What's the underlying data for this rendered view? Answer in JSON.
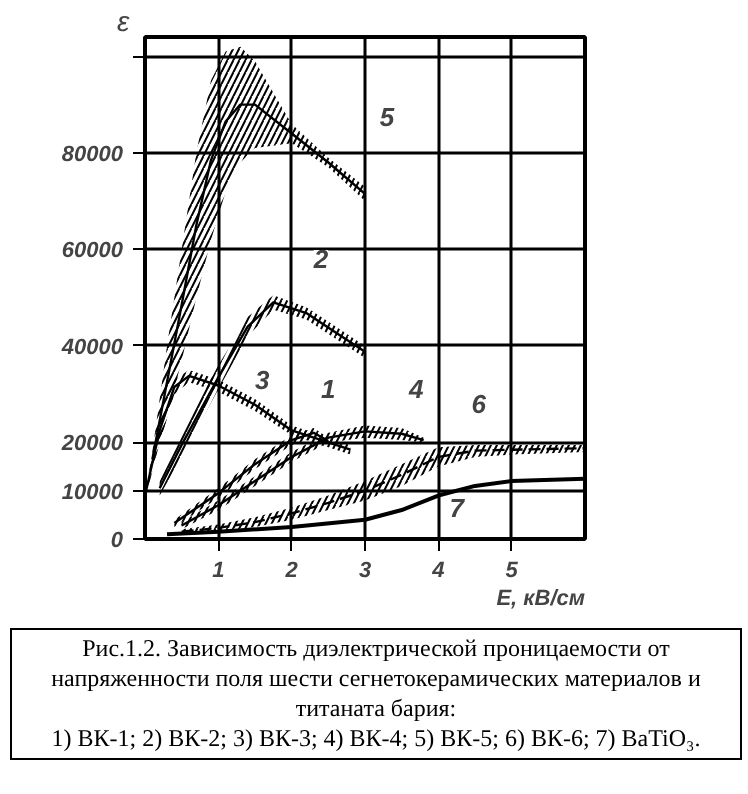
{
  "chart_data": {
    "type": "line",
    "ylabel": "ε",
    "xlabel": "E, кВ/см",
    "xlim": [
      0,
      6
    ],
    "xticks": [
      1,
      2,
      3,
      4,
      5
    ],
    "ylim": [
      0,
      104000
    ],
    "yticks": [
      0,
      10000,
      20000,
      {
        "value": 40000,
        "label": "40000"
      },
      60000,
      80000,
      {
        "value": 100000,
        "label": null
      }
    ],
    "grid": true,
    "series": [
      {
        "color": "#000000",
        "x": [
          0.1,
          0.3,
          0.5,
          0.7,
          0.9,
          1.1,
          1.3,
          1.5,
          2,
          2.5,
          3
        ],
        "values": [
          16500,
          32500,
          48500,
          65000,
          78500,
          86500,
          90000,
          90000,
          84000,
          78000,
          71500
        ],
        "lower": [
          15000,
          25000,
          37000,
          50000,
          62000,
          72000,
          78000,
          81000,
          82000,
          77000,
          70000
        ],
        "upper": [
          18000,
          40000,
          60000,
          80000,
          95000,
          101000,
          102000,
          99000,
          86000,
          79000,
          73000
        ]
      },
      {
        "color": "#000000",
        "x": [
          0.2,
          0.5,
          1,
          1.4,
          1.75,
          2.2,
          2.6,
          3
        ],
        "values": [
          10500,
          19500,
          33500,
          44000,
          49000,
          46800,
          42800,
          38800
        ],
        "lower": [
          9000,
          17000,
          31000,
          42000,
          47500,
          45500,
          41500,
          37500
        ],
        "upper": [
          12000,
          22000,
          36000,
          46000,
          50500,
          48000,
          44000,
          40000
        ]
      },
      {
        "color": "#000000",
        "x": [
          0,
          0.2,
          0.4,
          0.6,
          1,
          1.5,
          2,
          2.5,
          2.8
        ],
        "values": [
          9000,
          22500,
          31500,
          33800,
          31800,
          27800,
          22500,
          20000,
          18500
        ],
        "lower": [
          8000,
          20000,
          30000,
          32500,
          30500,
          26500,
          21500,
          19000,
          17500
        ],
        "upper": [
          10000,
          25000,
          33000,
          35000,
          33000,
          29000,
          23500,
          21000,
          19500
        ]
      },
      {
        "color": "#000000",
        "x": [
          0.4,
          1,
          1.5,
          2,
          2.3,
          2.5
        ],
        "values": [
          3300,
          9500,
          15500,
          20500,
          22000,
          20300
        ],
        "lower": [
          2500,
          8500,
          14500,
          19500,
          21000,
          19500
        ],
        "upper": [
          4000,
          10500,
          16500,
          21500,
          23000,
          21000
        ]
      },
      {
        "color": "#000000",
        "x": [
          0.5,
          1,
          1.5,
          2,
          2.5,
          3,
          3.5,
          3.8
        ],
        "values": [
          2800,
          7000,
          12000,
          17000,
          21000,
          22300,
          21800,
          20500
        ],
        "lower": [
          2000,
          6000,
          11000,
          16000,
          20000,
          21000,
          20500,
          20000
        ],
        "upper": [
          3500,
          8000,
          13000,
          18000,
          22000,
          23500,
          23000,
          21000
        ]
      },
      {
        "color": "#000000",
        "line_style": "dashed",
        "x": [
          0.5,
          1,
          1.5,
          2,
          2.5,
          3,
          3.5,
          4,
          4.5,
          5,
          6
        ],
        "values": [
          1500,
          2300,
          3500,
          5300,
          7500,
          10000,
          13300,
          17000,
          18300,
          18500,
          18800
        ],
        "lower": [
          1000,
          1500,
          2500,
          4000,
          6000,
          8000,
          11000,
          15000,
          17000,
          17500,
          18000
        ],
        "upper": [
          2000,
          3000,
          4500,
          6500,
          9000,
          12000,
          15500,
          19000,
          19500,
          19500,
          19500
        ]
      },
      {
        "color": "#000000",
        "x": [
          0.3,
          1,
          2,
          3,
          3.5,
          4,
          4.5,
          5,
          6
        ],
        "values": [
          1000,
          1500,
          2500,
          4000,
          6000,
          9000,
          11000,
          12000,
          12500
        ]
      }
    ],
    "annotations": [
      {
        "text": "5",
        "x": 3.3,
        "y": 87500
      },
      {
        "text": "2",
        "x": 2.4,
        "y": 58000
      },
      {
        "text": "3",
        "x": 1.6,
        "y": 33000
      },
      {
        "text": "1",
        "x": 2.5,
        "y": 31000
      },
      {
        "text": "4",
        "x": 3.7,
        "y": 31000
      },
      {
        "text": "6",
        "x": 4.55,
        "y": 28000
      },
      {
        "text": "7",
        "x": 4.25,
        "y": 6400
      },
      "Рис.1.2. Зависимость диэлектрической проницаемости от напряженности поля шести сегнетокерамических материалов и титаната бария:\n1) ВК-1; 2) ВК-2; 3) ВК-3; 4) ВК-4; 5) ВК-5; 6) ВК-6; 7) BaTiO₃."
    ]
  }
}
